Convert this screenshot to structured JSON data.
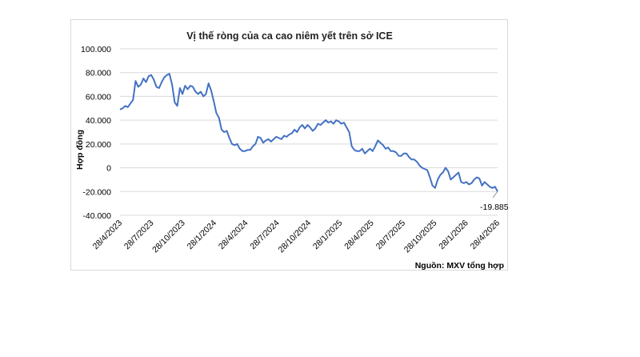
{
  "chart_data": {
    "type": "line",
    "title": "Vị thế ròng của ca cao niêm yết trên sở ICE",
    "ylabel": "Hợp đồng",
    "xlabel": "",
    "source": "Nguồn: MXV tổng hợp",
    "ylim": [
      -40000,
      100000
    ],
    "y_ticks": [
      -40000,
      -20000,
      0,
      20000,
      40000,
      60000,
      80000,
      100000
    ],
    "y_tick_labels": [
      "-40.000",
      "-20.000",
      "0",
      "20.000",
      "40.000",
      "60.000",
      "80.000",
      "100.000"
    ],
    "x_tick_labels": [
      "28/4/2023",
      "28/7/2023",
      "28/10/2023",
      "28/1/2024",
      "28/4/2024",
      "28/7/2024",
      "28/10/2024",
      "28/1/2025",
      "28/4/2025",
      "28/7/2025",
      "28/10/2025",
      "28/1/2026",
      "28/4/2026"
    ],
    "grid": true,
    "last_value_label": "-19.885",
    "series": [
      {
        "color": "#4472c4",
        "values": [
          49000,
          50000,
          52000,
          51000,
          54000,
          57000,
          73000,
          68000,
          70000,
          75000,
          72000,
          77000,
          78000,
          74000,
          68000,
          67000,
          72000,
          76000,
          78000,
          79000,
          70000,
          55000,
          52000,
          67000,
          62000,
          69000,
          66000,
          69000,
          68000,
          64000,
          62000,
          64000,
          60000,
          62000,
          71000,
          65000,
          56000,
          46000,
          42000,
          32000,
          30000,
          31000,
          25000,
          20000,
          19000,
          20000,
          16000,
          14000,
          14000,
          15000,
          15000,
          18000,
          20000,
          26000,
          25000,
          21000,
          23000,
          24000,
          22000,
          24000,
          26000,
          25000,
          24000,
          27000,
          26000,
          28000,
          29000,
          32000,
          30000,
          34000,
          36000,
          33000,
          36000,
          34000,
          31000,
          33000,
          37000,
          36000,
          38000,
          40000,
          38000,
          39000,
          37000,
          40000,
          39000,
          37000,
          38000,
          34000,
          30000,
          18000,
          15000,
          14000,
          14000,
          16000,
          12000,
          14000,
          16000,
          14000,
          18000,
          23000,
          21000,
          19000,
          16000,
          17000,
          14000,
          14000,
          13000,
          10000,
          10000,
          12000,
          12000,
          9000,
          7000,
          7000,
          5000,
          2000,
          0,
          -1000,
          -2000,
          -8000,
          -15000,
          -17000,
          -10000,
          -6000,
          -4000,
          0,
          -3000,
          -10000,
          -8000,
          -6000,
          -4000,
          -12000,
          -13000,
          -12000,
          -14000,
          -13000,
          -10000,
          -8000,
          -9000,
          -15000,
          -12000,
          -14000,
          -16000,
          -17000,
          -16000,
          -19885
        ]
      }
    ]
  }
}
